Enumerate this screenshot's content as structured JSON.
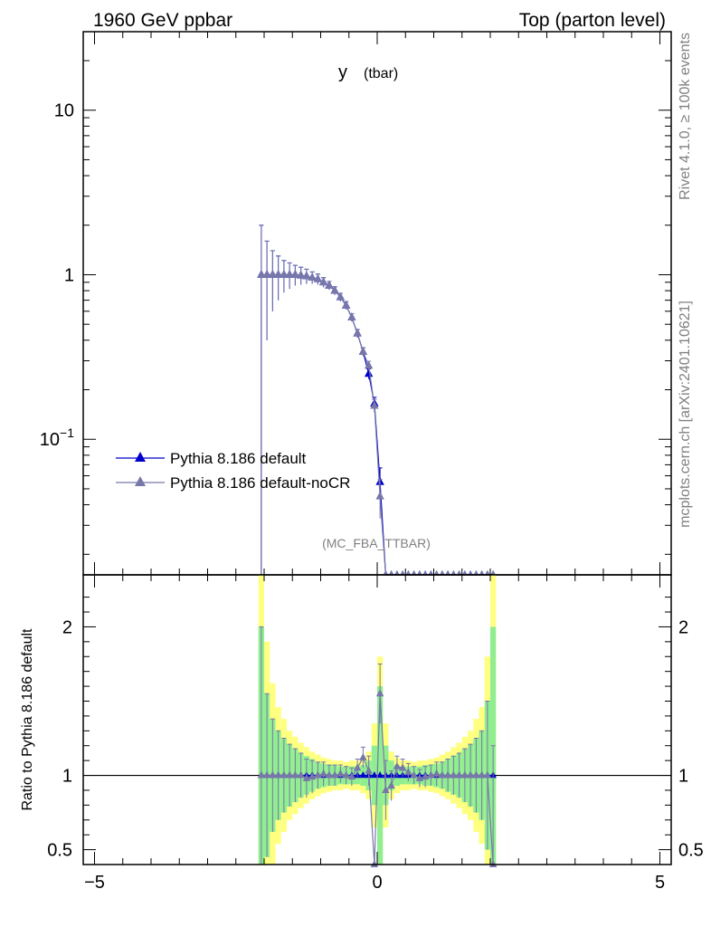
{
  "header": {
    "left": "1960 GeV ppbar",
    "right": "Top (parton level)"
  },
  "side_text": {
    "rivet": "Rivet 4.1.0, ≥ 100k events",
    "mcplots": "mcplots.cern.ch [arXiv:2401.10621]"
  },
  "chart_data": [
    {
      "type": "line",
      "title": "y",
      "title_sub": "(tbar)",
      "analysis_label": "(MC_FBA_TTBAR)",
      "xlim": [
        -5.2,
        5.2
      ],
      "ylim": [
        0.015,
        30
      ],
      "yscale": "log",
      "ytick_labels": {
        "major_values": [
          0.1,
          1,
          10
        ],
        "labels": [
          "10−1",
          "1",
          "10"
        ]
      },
      "legend_position": "lower-left",
      "colors": {
        "default": "#0000cc",
        "noCR": "#7777aa"
      },
      "x": [
        -2.05,
        -1.95,
        -1.85,
        -1.75,
        -1.65,
        -1.55,
        -1.45,
        -1.35,
        -1.25,
        -1.15,
        -1.05,
        -0.95,
        -0.85,
        -0.75,
        -0.65,
        -0.55,
        -0.45,
        -0.35,
        -0.25,
        -0.15,
        -0.05,
        0.05,
        0.15,
        0.25,
        0.35,
        0.45,
        0.55,
        0.65,
        0.75,
        0.85,
        0.95,
        1.05,
        1.15,
        1.25,
        1.35,
        1.45,
        1.55,
        1.65,
        1.75,
        1.85,
        1.95,
        2.05
      ],
      "series": [
        {
          "name": "Pythia 8.186 default",
          "marker": "triangle-filled",
          "values": [
            1.0,
            1.0,
            1.0,
            1.0,
            1.0,
            1.0,
            1.0,
            0.99,
            0.98,
            0.96,
            0.94,
            0.9,
            0.86,
            0.8,
            0.73,
            0.65,
            0.55,
            0.44,
            0.34,
            0.25,
            0.165,
            0.055,
            0.0,
            0.0,
            0.0,
            0.0,
            0.0,
            0.0,
            0.0,
            0.0,
            0.0,
            0.0,
            0.0,
            0.0,
            0.0,
            0.0,
            0.0,
            0.0,
            0.0,
            0.0,
            0.0,
            0.0
          ],
          "errors": [
            1.0,
            0.6,
            0.4,
            0.3,
            0.22,
            0.18,
            0.14,
            0.12,
            0.1,
            0.08,
            0.07,
            0.06,
            0.05,
            0.045,
            0.04,
            0.035,
            0.03,
            0.025,
            0.02,
            0.018,
            0.015,
            0.012,
            0,
            0,
            0,
            0,
            0,
            0,
            0,
            0,
            0,
            0,
            0,
            0,
            0,
            0,
            0,
            0,
            0,
            0,
            0,
            0
          ]
        },
        {
          "name": "Pythia 8.186 default-noCR",
          "marker": "triangle-filled",
          "values": [
            1.0,
            1.0,
            1.0,
            1.0,
            1.0,
            1.0,
            1.0,
            0.99,
            0.98,
            0.96,
            0.94,
            0.9,
            0.86,
            0.8,
            0.73,
            0.65,
            0.55,
            0.44,
            0.34,
            0.28,
            0.16,
            0.045,
            0.0,
            0.0,
            0.0,
            0.0,
            0.0,
            0.0,
            0.0,
            0.0,
            0.0,
            0.0,
            0.0,
            0.0,
            0.0,
            0.0,
            0.0,
            0.0,
            0.0,
            0.0,
            0.0,
            0.0
          ],
          "errors": [
            1.0,
            0.6,
            0.4,
            0.3,
            0.22,
            0.18,
            0.14,
            0.12,
            0.1,
            0.08,
            0.07,
            0.06,
            0.05,
            0.045,
            0.04,
            0.035,
            0.03,
            0.025,
            0.02,
            0.018,
            0.015,
            0.012,
            0,
            0,
            0,
            0,
            0,
            0,
            0,
            0,
            0,
            0,
            0,
            0,
            0,
            0,
            0,
            0,
            0,
            0,
            0,
            0
          ]
        }
      ]
    },
    {
      "type": "line",
      "ylabel": "Ratio to Pythia 8.186 default",
      "xlim": [
        -5.2,
        5.2
      ],
      "ylim": [
        0.4,
        2.35
      ],
      "xtick_labels": [
        "−5",
        "0",
        "5"
      ],
      "ytick_labels": [
        "0.5",
        "1",
        "2"
      ],
      "reference_line": 1,
      "band_colors": {
        "inner": "#90ee90",
        "outer": "#ffff80"
      },
      "x": [
        -2.05,
        -1.95,
        -1.85,
        -1.75,
        -1.65,
        -1.55,
        -1.45,
        -1.35,
        -1.25,
        -1.15,
        -1.05,
        -0.95,
        -0.85,
        -0.75,
        -0.65,
        -0.55,
        -0.45,
        -0.35,
        -0.25,
        -0.15,
        -0.05,
        0.05,
        0.15,
        0.25,
        0.35,
        0.45,
        0.55,
        0.65,
        0.75,
        0.85,
        0.95,
        1.05,
        1.15,
        1.25,
        1.35,
        1.45,
        1.55,
        1.65,
        1.75,
        1.85,
        1.95,
        2.05
      ],
      "band_inner": [
        1.0,
        0.55,
        0.38,
        0.3,
        0.25,
        0.21,
        0.18,
        0.15,
        0.13,
        0.11,
        0.09,
        0.08,
        0.07,
        0.07,
        0.06,
        0.06,
        0.06,
        0.06,
        0.07,
        0.1,
        0.2,
        0.6,
        0.2,
        0.1,
        0.07,
        0.06,
        0.06,
        0.06,
        0.06,
        0.07,
        0.07,
        0.08,
        0.09,
        0.11,
        0.13,
        0.15,
        0.18,
        0.21,
        0.25,
        0.3,
        0.5,
        1.0
      ],
      "band_outer": [
        1.4,
        0.9,
        0.62,
        0.46,
        0.38,
        0.3,
        0.26,
        0.22,
        0.19,
        0.16,
        0.14,
        0.12,
        0.11,
        0.1,
        0.1,
        0.09,
        0.1,
        0.1,
        0.12,
        0.16,
        0.35,
        0.8,
        0.35,
        0.16,
        0.12,
        0.1,
        0.1,
        0.09,
        0.1,
        0.1,
        0.11,
        0.12,
        0.14,
        0.16,
        0.19,
        0.22,
        0.26,
        0.3,
        0.38,
        0.46,
        0.8,
        1.4
      ],
      "series": [
        {
          "name": "Pythia 8.186 default",
          "values": [
            1,
            1,
            1,
            1,
            1,
            1,
            1,
            1,
            1,
            1,
            1,
            1,
            1,
            1,
            1,
            1,
            1,
            1,
            1,
            1,
            1,
            1,
            1,
            1,
            1,
            1,
            1,
            1,
            1,
            1,
            1,
            1,
            1,
            1,
            1,
            1,
            1,
            1,
            1,
            1,
            1,
            1
          ]
        },
        {
          "name": "Pythia 8.186 default-noCR",
          "values": [
            1.0,
            1.0,
            1.0,
            1.0,
            1.0,
            1.0,
            1.0,
            1.0,
            0.98,
            0.99,
            1.0,
            1.01,
            1.0,
            1.0,
            1.01,
            1.0,
            0.99,
            1.05,
            1.12,
            1.03,
            0.2,
            1.55,
            0.9,
            0.93,
            1.06,
            1.05,
            1.02,
            1.0,
            0.98,
            0.99,
            1.0,
            1.01,
            1.0,
            1.0,
            1.0,
            1.0,
            1.0,
            1.0,
            1.0,
            1.0,
            1.0,
            0.2
          ],
          "errors": [
            1.0,
            0.55,
            0.38,
            0.3,
            0.25,
            0.21,
            0.18,
            0.15,
            0.13,
            0.11,
            0.09,
            0.08,
            0.07,
            0.07,
            0.06,
            0.06,
            0.06,
            0.06,
            0.07,
            0.1,
            0.2,
            0.2,
            0.2,
            0.1,
            0.07,
            0.06,
            0.06,
            0.06,
            0.06,
            0.07,
            0.07,
            0.08,
            0.09,
            0.11,
            0.13,
            0.15,
            0.18,
            0.21,
            0.25,
            0.3,
            0.5,
            1.0
          ]
        }
      ]
    }
  ]
}
